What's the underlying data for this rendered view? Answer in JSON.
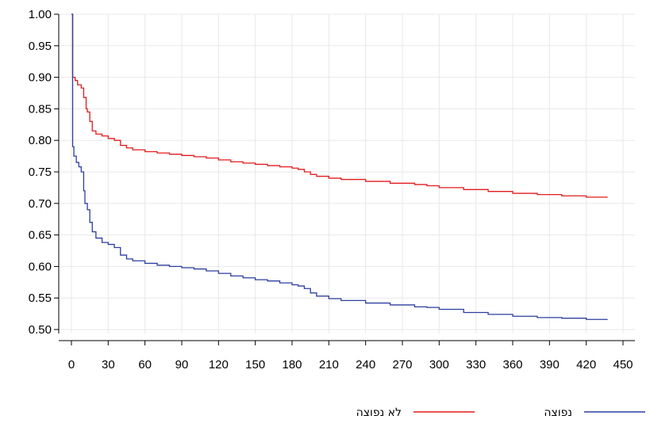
{
  "chart_data": {
    "type": "line",
    "title": "",
    "xlabel": "",
    "ylabel": "",
    "xlim": [
      0,
      450
    ],
    "ylim": [
      0.5,
      1.0
    ],
    "x_ticks": [
      0,
      30,
      60,
      90,
      120,
      150,
      180,
      210,
      240,
      270,
      300,
      330,
      360,
      390,
      420,
      450
    ],
    "y_ticks": [
      0.5,
      0.55,
      0.6,
      0.65,
      0.7,
      0.75,
      0.8,
      0.85,
      0.9,
      0.95,
      1.0
    ],
    "grid": true,
    "legend_position": "bottom-right",
    "colors": {
      "red": "#e31a1c",
      "blue": "#2c3e9e",
      "grid": "#e8e8e8"
    },
    "series": [
      {
        "name": "לא נפוצה",
        "color": "#e31a1c",
        "step": true,
        "x": [
          0,
          1,
          1,
          3,
          5,
          8,
          10,
          12,
          13,
          15,
          17,
          20,
          25,
          30,
          35,
          40,
          45,
          50,
          60,
          70,
          80,
          90,
          100,
          110,
          120,
          130,
          140,
          150,
          160,
          170,
          180,
          185,
          190,
          195,
          200,
          210,
          220,
          240,
          260,
          280,
          290,
          300,
          320,
          340,
          360,
          380,
          400,
          420,
          437
        ],
        "y": [
          1.0,
          1.0,
          0.9,
          0.895,
          0.888,
          0.883,
          0.868,
          0.85,
          0.845,
          0.83,
          0.815,
          0.81,
          0.807,
          0.803,
          0.8,
          0.792,
          0.788,
          0.785,
          0.782,
          0.78,
          0.778,
          0.776,
          0.774,
          0.772,
          0.769,
          0.766,
          0.764,
          0.762,
          0.76,
          0.758,
          0.756,
          0.754,
          0.75,
          0.746,
          0.743,
          0.74,
          0.738,
          0.735,
          0.732,
          0.73,
          0.728,
          0.725,
          0.722,
          0.719,
          0.716,
          0.714,
          0.712,
          0.71,
          0.709
        ]
      },
      {
        "name": "נפוצה",
        "color": "#2c3e9e",
        "step": true,
        "x": [
          0,
          1,
          1,
          2,
          4,
          6,
          8,
          10,
          11,
          13,
          15,
          17,
          20,
          25,
          30,
          35,
          40,
          45,
          50,
          60,
          70,
          80,
          90,
          100,
          110,
          120,
          130,
          140,
          150,
          160,
          170,
          180,
          185,
          190,
          195,
          200,
          210,
          220,
          240,
          260,
          280,
          290,
          300,
          320,
          340,
          360,
          380,
          400,
          420,
          437
        ],
        "y": [
          1.0,
          1.0,
          0.79,
          0.775,
          0.765,
          0.758,
          0.75,
          0.72,
          0.7,
          0.69,
          0.67,
          0.655,
          0.645,
          0.638,
          0.635,
          0.63,
          0.618,
          0.612,
          0.609,
          0.605,
          0.602,
          0.6,
          0.598,
          0.596,
          0.593,
          0.589,
          0.585,
          0.582,
          0.579,
          0.577,
          0.574,
          0.571,
          0.569,
          0.565,
          0.558,
          0.553,
          0.549,
          0.546,
          0.542,
          0.539,
          0.536,
          0.535,
          0.532,
          0.527,
          0.524,
          0.521,
          0.519,
          0.518,
          0.516,
          0.515
        ]
      }
    ]
  }
}
